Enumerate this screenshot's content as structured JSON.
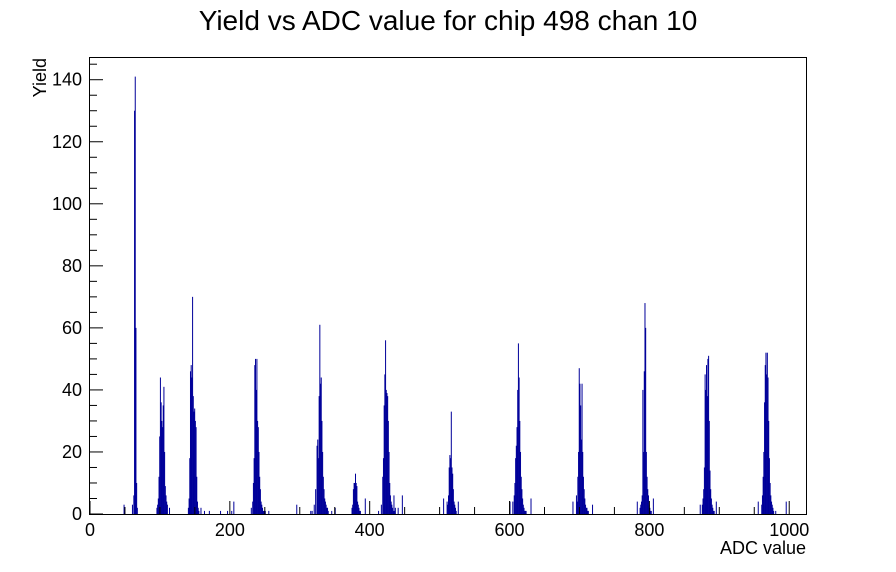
{
  "chart_data": {
    "type": "bar",
    "title": "Yield vs ADC value for chip 498 chan 10",
    "xlabel": "ADC value",
    "ylabel": "Yield",
    "xlim": [
      0,
      1024
    ],
    "ylim": [
      0,
      147
    ],
    "x_ticks": [
      0,
      200,
      400,
      600,
      800,
      1000
    ],
    "y_ticks": [
      0,
      20,
      40,
      60,
      80,
      100,
      120,
      140
    ],
    "grid": false,
    "legend": "none",
    "bin_width": 1,
    "series": [
      {
        "color": "#000099",
        "x": [
          48,
          60,
          62,
          63,
          64,
          65,
          66,
          67,
          95,
          96,
          97,
          98,
          99,
          100,
          101,
          102,
          103,
          104,
          105,
          106,
          107,
          108,
          109,
          110,
          113,
          140,
          141,
          142,
          143,
          144,
          145,
          146,
          147,
          148,
          149,
          150,
          151,
          152,
          153,
          154,
          155,
          158,
          163,
          170,
          186,
          196,
          202,
          205,
          230,
          232,
          233,
          234,
          235,
          236,
          237,
          238,
          239,
          240,
          241,
          242,
          243,
          244,
          245,
          246,
          247,
          248,
          249,
          250,
          255,
          295,
          315,
          317,
          320,
          322,
          324,
          325,
          326,
          327,
          328,
          329,
          330,
          331,
          332,
          333,
          334,
          335,
          336,
          337,
          338,
          339,
          340,
          345,
          350,
          374,
          375,
          376,
          377,
          378,
          379,
          380,
          381,
          382,
          383,
          384,
          385,
          386,
          393,
          412,
          416,
          418,
          419,
          420,
          421,
          422,
          423,
          424,
          425,
          426,
          427,
          428,
          429,
          430,
          431,
          432,
          433,
          434,
          435,
          436,
          440,
          446,
          505,
          510,
          511,
          512,
          513,
          514,
          515,
          516,
          517,
          518,
          519,
          520,
          521,
          522,
          523,
          526,
          600,
          604,
          606,
          607,
          608,
          609,
          610,
          611,
          612,
          613,
          614,
          615,
          616,
          617,
          618,
          619,
          620,
          621,
          622,
          623,
          630,
          690,
          695,
          696,
          697,
          698,
          699,
          700,
          701,
          702,
          703,
          704,
          705,
          706,
          707,
          708,
          709,
          710,
          711,
          712,
          718,
          782,
          786,
          787,
          788,
          789,
          790,
          791,
          792,
          793,
          794,
          795,
          796,
          797,
          798,
          799,
          800,
          801,
          802,
          805,
          872,
          875,
          876,
          877,
          878,
          879,
          880,
          881,
          882,
          883,
          884,
          885,
          886,
          887,
          888,
          889,
          890,
          891,
          892,
          895,
          955,
          960,
          961,
          962,
          963,
          964,
          965,
          966,
          967,
          968,
          969,
          970,
          971,
          972,
          973,
          974,
          975,
          976,
          977,
          980,
          995
        ],
        "values": [
          3,
          3,
          6,
          130,
          141,
          60,
          10,
          2,
          2,
          3,
          5,
          12,
          25,
          44,
          36,
          30,
          28,
          35,
          41,
          20,
          9,
          6,
          4,
          3,
          2,
          2,
          5,
          18,
          46,
          48,
          44,
          70,
          38,
          33,
          34,
          30,
          28,
          12,
          4,
          2,
          1,
          2,
          1,
          1,
          1,
          1,
          1,
          4,
          2,
          4,
          10,
          18,
          48,
          50,
          40,
          50,
          30,
          28,
          20,
          12,
          8,
          4,
          3,
          2,
          1,
          1,
          1,
          1,
          1,
          3,
          1,
          1,
          3,
          8,
          22,
          24,
          18,
          38,
          61,
          42,
          44,
          30,
          20,
          12,
          8,
          5,
          4,
          3,
          2,
          2,
          1,
          1,
          2,
          2,
          3,
          8,
          10,
          10,
          13,
          10,
          9,
          4,
          3,
          2,
          1,
          1,
          5,
          1,
          3,
          12,
          18,
          35,
          45,
          56,
          40,
          39,
          38,
          30,
          20,
          10,
          6,
          4,
          3,
          2,
          1,
          6,
          1,
          2,
          2,
          6,
          5,
          4,
          3,
          6,
          15,
          19,
          18,
          33,
          15,
          13,
          8,
          4,
          3,
          2,
          1,
          4,
          4,
          4,
          6,
          10,
          18,
          22,
          28,
          40,
          55,
          44,
          30,
          20,
          12,
          8,
          5,
          3,
          2,
          1,
          1,
          1,
          5,
          4,
          6,
          4,
          12,
          20,
          47,
          42,
          35,
          24,
          42,
          20,
          12,
          8,
          5,
          3,
          2,
          2,
          1,
          1,
          3,
          4,
          2,
          3,
          4,
          6,
          40,
          20,
          46,
          68,
          60,
          20,
          12,
          8,
          6,
          3,
          2,
          1,
          1,
          5,
          3,
          3,
          5,
          8,
          15,
          45,
          40,
          48,
          38,
          50,
          51,
          30,
          14,
          8,
          5,
          3,
          2,
          1,
          1,
          4,
          4,
          3,
          6,
          12,
          20,
          36,
          48,
          52,
          45,
          52,
          44,
          30,
          18,
          10,
          6,
          4,
          3,
          2,
          1,
          1,
          4
        ]
      }
    ]
  }
}
